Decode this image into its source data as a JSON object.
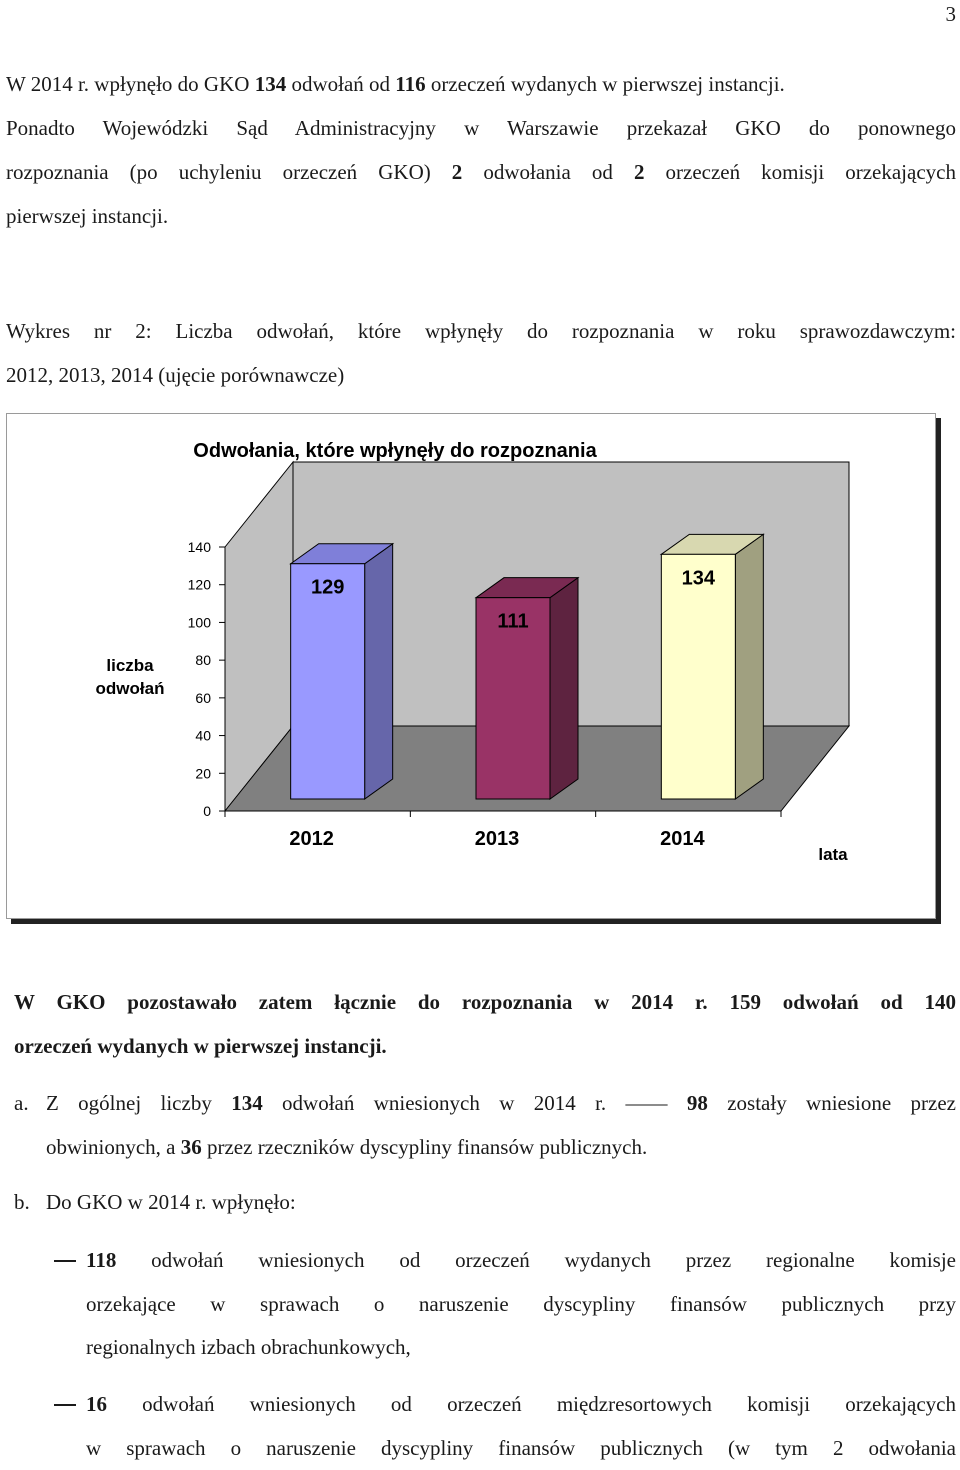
{
  "page_number": "3",
  "intro": {
    "l1_a": "W 2014 r. wpłynęło do GKO ",
    "l1_n1": "134",
    "l1_b": " odwołań od ",
    "l1_n2": "116",
    "l1_c": " orzeczeń wydanych w pierwszej instancji.",
    "l2": "Ponadto Wojewódzki Sąd Administracyjny w Warszawie przekazał GKO do ponownego",
    "l3_a": "rozpoznania (po uchyleniu orzeczeń GKO) ",
    "l3_n1": "2",
    "l3_b": " odwołania od ",
    "l3_n2": "2",
    "l3_c": " orzeczeń komisji orzekających",
    "l4": "pierwszej instancji."
  },
  "caption": {
    "l1": "Wykres nr 2: Liczba odwołań, które wpłynęły do rozpoznania w roku sprawozdawczym:",
    "l2": "2012, 2013, 2014 (ujęcie porównawcze)"
  },
  "chart_data": {
    "type": "bar",
    "title": "Odwołania, które wpłynęły do rozpoznania",
    "categories": [
      "2012",
      "2013",
      "2014"
    ],
    "values": [
      129,
      111,
      134
    ],
    "ylabel_line1": "liczba",
    "ylabel_line2": "odwołań",
    "xlabel": "lata",
    "ylim": [
      0,
      140
    ],
    "yticks": [
      "0",
      "20",
      "40",
      "60",
      "80",
      "100",
      "120",
      "140"
    ],
    "colors": {
      "front": [
        "#9999ff",
        "#993366",
        "#ffffcc"
      ],
      "side": [
        "#6666aa",
        "#5e2340",
        "#a0a080"
      ],
      "top": [
        "#7f7fd9",
        "#7a2a52",
        "#d8d8b0"
      ],
      "wall": "#c0c0c0",
      "floor": "#808080"
    }
  },
  "summary": {
    "l1": "W GKO pozostawało zatem łącznie do rozpoznania w 2014 r. 159 odwołań od 140",
    "l2": "orzeczeń wydanych w pierwszej instancji."
  },
  "item_a": {
    "marker": "a.",
    "l1_a": "Z ogólnej liczby ",
    "l1_n1": "134",
    "l1_b": " odwołań wniesionych w 2014 r. ",
    "l1_n2": "98",
    "l1_c": " zostały wniesione przez",
    "l2_a": "obwinionych, a ",
    "l2_n": "36",
    "l2_b": " przez rzeczników dyscypliny finansów publicznych."
  },
  "item_b": {
    "marker": "b.",
    "text": "Do GKO w 2014 r. wpłynęło:"
  },
  "bullet1": {
    "n": "118",
    "l1_rest": " odwołań wniesionych od orzeczeń wydanych przez regionalne komisje",
    "l2": "orzekające w sprawach o naruszenie dyscypliny finansów publicznych przy",
    "l3": "regionalnych izbach obrachunkowych,"
  },
  "bullet2": {
    "n": "16",
    "l1_rest": " odwołań wniesionych od orzeczeń międzresortowych komisji orzekających",
    "l2": "w sprawach o naruszenie dyscypliny finansów publicznych (w tym 2 odwołania"
  }
}
